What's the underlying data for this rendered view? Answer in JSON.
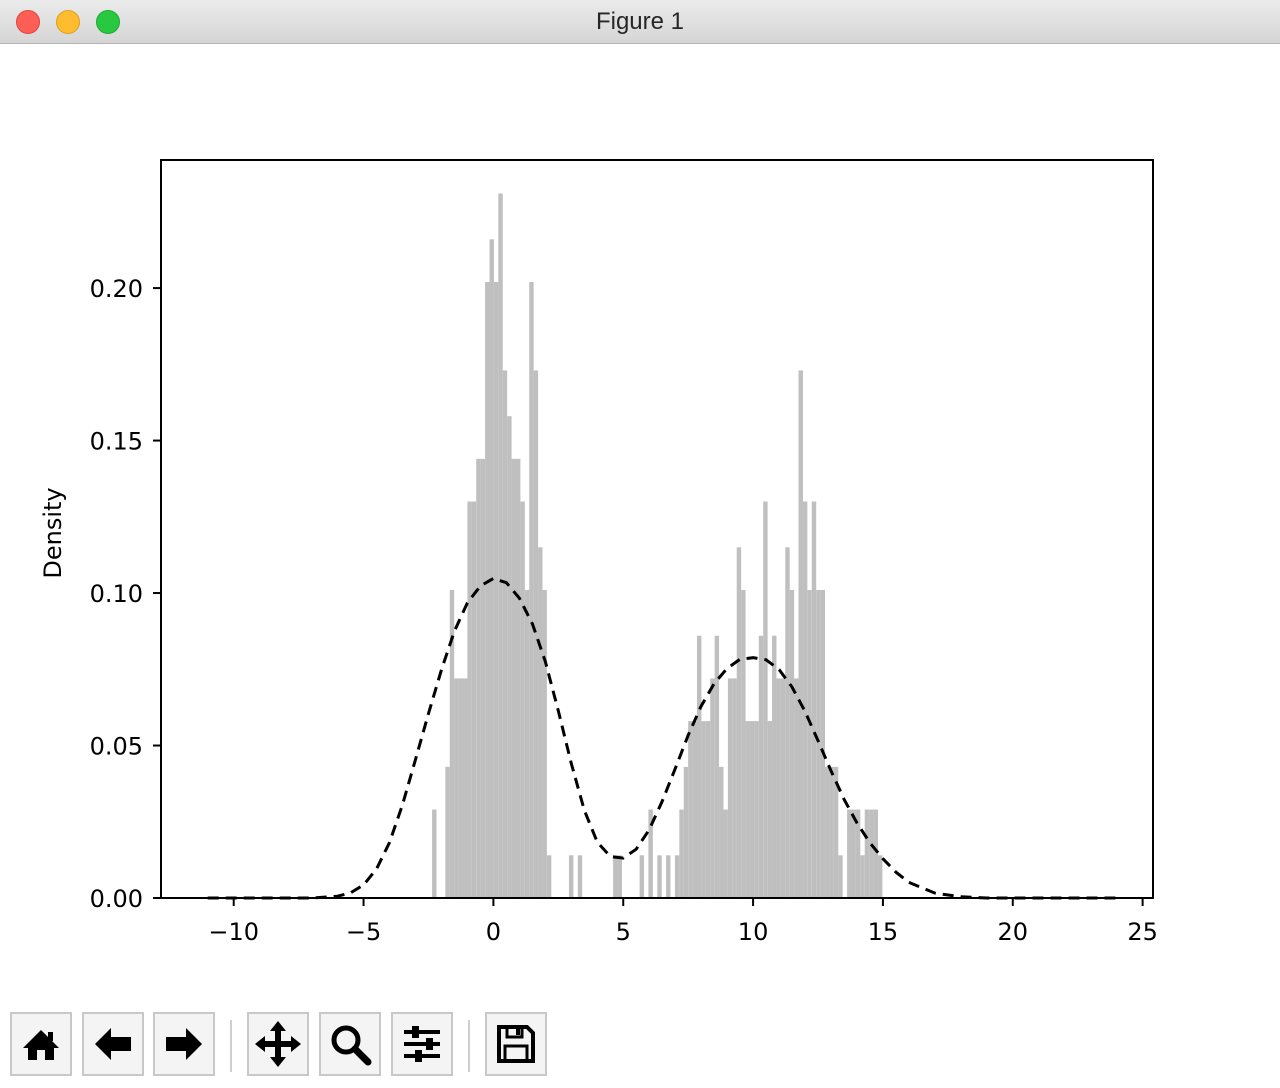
{
  "window": {
    "title": "Figure 1"
  },
  "toolbar": {
    "buttons": [
      {
        "name": "home-button",
        "icon": "home-icon"
      },
      {
        "name": "back-button",
        "icon": "arrow-left-icon"
      },
      {
        "name": "forward-button",
        "icon": "arrow-right-icon"
      },
      {
        "name": "pan-button",
        "icon": "move-icon"
      },
      {
        "name": "zoom-button",
        "icon": "magnifier-icon"
      },
      {
        "name": "configure-subplots-button",
        "icon": "sliders-icon"
      },
      {
        "name": "save-button",
        "icon": "floppy-disk-icon"
      }
    ]
  },
  "chart_data": {
    "type": "bar",
    "title": "",
    "xlabel": "",
    "ylabel": "Density",
    "xlim": [
      -12.8,
      25.4
    ],
    "ylim": [
      0,
      0.242
    ],
    "xticks": [
      -10,
      -5,
      0,
      5,
      10,
      15,
      20,
      25
    ],
    "xtick_labels": [
      "−10",
      "−5",
      "0",
      "5",
      "10",
      "15",
      "20",
      "25"
    ],
    "yticks": [
      0,
      0.05,
      0.1,
      0.15,
      0.2
    ],
    "ytick_labels": [
      "0.00",
      "0.05",
      "0.10",
      "0.15",
      "0.20"
    ],
    "grid": false,
    "colors": {
      "histogram": "#bfbfbf",
      "density_line": "#000000",
      "axes": "#000000"
    },
    "histogram": {
      "bin_width": 0.17,
      "bins": [
        [
          -2.36,
          0.029
        ],
        [
          -2.19,
          0.0
        ],
        [
          -2.02,
          0.0
        ],
        [
          -1.85,
          0.043
        ],
        [
          -1.68,
          0.101
        ],
        [
          -1.51,
          0.072
        ],
        [
          -1.34,
          0.072
        ],
        [
          -1.17,
          0.072
        ],
        [
          -1.0,
          0.13
        ],
        [
          -0.83,
          0.13
        ],
        [
          -0.66,
          0.144
        ],
        [
          -0.49,
          0.144
        ],
        [
          -0.32,
          0.202
        ],
        [
          -0.15,
          0.216
        ],
        [
          0.02,
          0.202
        ],
        [
          0.19,
          0.231
        ],
        [
          0.36,
          0.173
        ],
        [
          0.53,
          0.158
        ],
        [
          0.7,
          0.144
        ],
        [
          0.87,
          0.144
        ],
        [
          1.04,
          0.13
        ],
        [
          1.21,
          0.101
        ],
        [
          1.38,
          0.202
        ],
        [
          1.55,
          0.173
        ],
        [
          1.72,
          0.115
        ],
        [
          1.89,
          0.101
        ],
        [
          2.06,
          0.014
        ],
        [
          2.23,
          0.0
        ],
        [
          2.4,
          0.0
        ],
        [
          2.57,
          0.0
        ],
        [
          2.74,
          0.0
        ],
        [
          2.91,
          0.014
        ],
        [
          3.08,
          0.0
        ],
        [
          3.25,
          0.014
        ],
        [
          3.42,
          0.0
        ],
        [
          3.59,
          0.0
        ],
        [
          3.76,
          0.0
        ],
        [
          3.93,
          0.0
        ],
        [
          4.1,
          0.0
        ],
        [
          4.27,
          0.0
        ],
        [
          4.44,
          0.0
        ],
        [
          4.61,
          0.014
        ],
        [
          4.78,
          0.014
        ],
        [
          4.95,
          0.0
        ],
        [
          5.12,
          0.0
        ],
        [
          5.29,
          0.0
        ],
        [
          5.46,
          0.0
        ],
        [
          5.63,
          0.014
        ],
        [
          5.8,
          0.0
        ],
        [
          5.97,
          0.029
        ],
        [
          6.14,
          0.0
        ],
        [
          6.31,
          0.014
        ],
        [
          6.48,
          0.0
        ],
        [
          6.65,
          0.014
        ],
        [
          6.82,
          0.0
        ],
        [
          6.99,
          0.014
        ],
        [
          7.16,
          0.029
        ],
        [
          7.33,
          0.043
        ],
        [
          7.5,
          0.058
        ],
        [
          7.67,
          0.058
        ],
        [
          7.84,
          0.086
        ],
        [
          8.01,
          0.058
        ],
        [
          8.18,
          0.058
        ],
        [
          8.35,
          0.072
        ],
        [
          8.52,
          0.086
        ],
        [
          8.69,
          0.043
        ],
        [
          8.86,
          0.029
        ],
        [
          9.03,
          0.072
        ],
        [
          9.2,
          0.072
        ],
        [
          9.37,
          0.115
        ],
        [
          9.54,
          0.101
        ],
        [
          9.71,
          0.058
        ],
        [
          9.88,
          0.058
        ],
        [
          10.05,
          0.058
        ],
        [
          10.22,
          0.086
        ],
        [
          10.39,
          0.13
        ],
        [
          10.56,
          0.058
        ],
        [
          10.73,
          0.086
        ],
        [
          10.9,
          0.072
        ],
        [
          11.07,
          0.072
        ],
        [
          11.24,
          0.115
        ],
        [
          11.41,
          0.101
        ],
        [
          11.58,
          0.072
        ],
        [
          11.75,
          0.173
        ],
        [
          11.92,
          0.13
        ],
        [
          12.09,
          0.101
        ],
        [
          12.26,
          0.13
        ],
        [
          12.43,
          0.101
        ],
        [
          12.6,
          0.101
        ],
        [
          12.77,
          0.043
        ],
        [
          12.94,
          0.043
        ],
        [
          13.11,
          0.043
        ],
        [
          13.28,
          0.014
        ],
        [
          13.45,
          0.0
        ],
        [
          13.62,
          0.029
        ],
        [
          13.79,
          0.029
        ],
        [
          13.96,
          0.029
        ],
        [
          14.13,
          0.014
        ],
        [
          14.3,
          0.029
        ],
        [
          14.47,
          0.029
        ],
        [
          14.64,
          0.029
        ],
        [
          14.81,
          0.014
        ]
      ]
    },
    "density_line": {
      "style": "dashed",
      "x": [
        -11,
        -10,
        -9,
        -8,
        -7,
        -6,
        -5.5,
        -5,
        -4.5,
        -4,
        -3.5,
        -3,
        -2.5,
        -2,
        -1.5,
        -1,
        -0.5,
        0,
        0.5,
        1,
        1.5,
        2,
        2.5,
        3,
        3.5,
        4,
        4.5,
        5,
        5.5,
        6,
        6.5,
        7,
        7.5,
        8,
        8.5,
        9,
        9.5,
        10,
        10.5,
        11,
        11.5,
        12,
        12.5,
        13,
        13.5,
        14,
        14.5,
        15,
        15.5,
        16,
        17,
        18,
        19,
        20,
        22,
        24
      ],
      "y": [
        0,
        0,
        0,
        0,
        0,
        0.0006,
        0.0017,
        0.0043,
        0.0095,
        0.0182,
        0.0306,
        0.0454,
        0.0605,
        0.0749,
        0.0875,
        0.0968,
        0.1023,
        0.1048,
        0.1034,
        0.0983,
        0.0899,
        0.0776,
        0.0614,
        0.0441,
        0.0288,
        0.0183,
        0.0136,
        0.0131,
        0.016,
        0.0224,
        0.0317,
        0.0424,
        0.0534,
        0.0629,
        0.0703,
        0.0753,
        0.0783,
        0.0788,
        0.0781,
        0.0749,
        0.0692,
        0.0612,
        0.0516,
        0.0417,
        0.0324,
        0.0246,
        0.0181,
        0.0129,
        0.0085,
        0.0051,
        0.0016,
        0.0004,
        0,
        0,
        0,
        0
      ]
    }
  }
}
